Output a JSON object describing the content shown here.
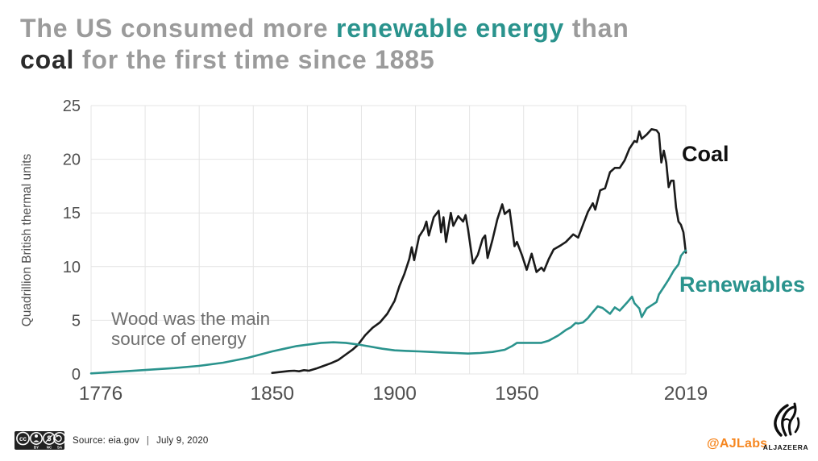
{
  "title": {
    "line1": [
      {
        "text": "The US consumed more ",
        "style": "muted"
      },
      {
        "text": "renewable energy",
        "style": "accent"
      },
      {
        "text": " than",
        "style": "muted"
      }
    ],
    "line2": [
      {
        "text": "coal",
        "style": "dark"
      },
      {
        "text": " for the first time since 1885",
        "style": "muted"
      }
    ]
  },
  "colors": {
    "accent_teal": "#2a938d",
    "coal_black": "#1a1a1a",
    "muted_gray": "#9b9b9b",
    "tick_gray": "#4f4f4f",
    "annotation_gray": "#6f6f6f",
    "grid_gray": "#e4e4e4",
    "credit_orange": "#f6861f"
  },
  "chart_data": {
    "type": "line",
    "title": "The US consumed more renewable energy than coal for the first time since 1885",
    "xlabel": "",
    "ylabel": "Quadrillion British thermal units",
    "xlim": [
      1776,
      2019
    ],
    "ylim": [
      0,
      25
    ],
    "x_ticks": [
      1776,
      1850,
      1900,
      1950,
      2019
    ],
    "y_ticks": [
      0,
      5,
      10,
      15,
      20,
      25
    ],
    "grid": "on",
    "legend_position": "inline-right",
    "annotation": {
      "lines": [
        "Wood was the main",
        "source of energy"
      ]
    },
    "series": [
      {
        "name": "Coal",
        "color": "#1a1a1a",
        "points": [
          [
            1850,
            0.1
          ],
          [
            1854,
            0.2
          ],
          [
            1857,
            0.28
          ],
          [
            1859,
            0.3
          ],
          [
            1861,
            0.25
          ],
          [
            1863,
            0.35
          ],
          [
            1865,
            0.3
          ],
          [
            1868,
            0.5
          ],
          [
            1871,
            0.75
          ],
          [
            1874,
            1.0
          ],
          [
            1877,
            1.3
          ],
          [
            1880,
            1.8
          ],
          [
            1883,
            2.3
          ],
          [
            1885,
            2.7
          ],
          [
            1888,
            3.6
          ],
          [
            1891,
            4.3
          ],
          [
            1894,
            4.8
          ],
          [
            1897,
            5.6
          ],
          [
            1900,
            6.8
          ],
          [
            1902,
            8.2
          ],
          [
            1904,
            9.3
          ],
          [
            1906,
            10.7
          ],
          [
            1907,
            11.8
          ],
          [
            1908,
            10.6
          ],
          [
            1910,
            12.8
          ],
          [
            1912,
            13.5
          ],
          [
            1913,
            14.2
          ],
          [
            1914,
            12.9
          ],
          [
            1916,
            14.6
          ],
          [
            1918,
            15.2
          ],
          [
            1919,
            13.2
          ],
          [
            1920,
            14.6
          ],
          [
            1921,
            12.3
          ],
          [
            1923,
            15.0
          ],
          [
            1924,
            13.8
          ],
          [
            1926,
            14.7
          ],
          [
            1928,
            14.2
          ],
          [
            1929,
            14.8
          ],
          [
            1930,
            13.5
          ],
          [
            1932,
            10.3
          ],
          [
            1934,
            11.1
          ],
          [
            1936,
            12.6
          ],
          [
            1937,
            12.9
          ],
          [
            1938,
            10.8
          ],
          [
            1940,
            12.5
          ],
          [
            1942,
            14.4
          ],
          [
            1944,
            15.8
          ],
          [
            1945,
            14.9
          ],
          [
            1947,
            15.3
          ],
          [
            1949,
            11.9
          ],
          [
            1950,
            12.3
          ],
          [
            1952,
            11.1
          ],
          [
            1954,
            9.7
          ],
          [
            1956,
            11.2
          ],
          [
            1958,
            9.5
          ],
          [
            1960,
            9.9
          ],
          [
            1961,
            9.6
          ],
          [
            1963,
            10.7
          ],
          [
            1965,
            11.6
          ],
          [
            1968,
            12.0
          ],
          [
            1970,
            12.3
          ],
          [
            1973,
            13.0
          ],
          [
            1975,
            12.7
          ],
          [
            1977,
            13.9
          ],
          [
            1979,
            15.1
          ],
          [
            1981,
            15.9
          ],
          [
            1982,
            15.3
          ],
          [
            1984,
            17.1
          ],
          [
            1986,
            17.3
          ],
          [
            1988,
            18.8
          ],
          [
            1990,
            19.2
          ],
          [
            1992,
            19.2
          ],
          [
            1994,
            19.9
          ],
          [
            1996,
            21.0
          ],
          [
            1998,
            21.7
          ],
          [
            1999,
            21.6
          ],
          [
            2000,
            22.6
          ],
          [
            2001,
            21.9
          ],
          [
            2003,
            22.3
          ],
          [
            2005,
            22.8
          ],
          [
            2007,
            22.7
          ],
          [
            2008,
            22.4
          ],
          [
            2009,
            19.7
          ],
          [
            2010,
            20.8
          ],
          [
            2011,
            19.7
          ],
          [
            2012,
            17.4
          ],
          [
            2013,
            18.0
          ],
          [
            2014,
            18.0
          ],
          [
            2015,
            15.5
          ],
          [
            2016,
            14.2
          ],
          [
            2017,
            13.9
          ],
          [
            2018,
            13.2
          ],
          [
            2019,
            11.3
          ]
        ]
      },
      {
        "name": "Renewables",
        "color": "#2a938d",
        "points": [
          [
            1776,
            0.05
          ],
          [
            1790,
            0.25
          ],
          [
            1800,
            0.4
          ],
          [
            1810,
            0.55
          ],
          [
            1820,
            0.75
          ],
          [
            1830,
            1.05
          ],
          [
            1840,
            1.5
          ],
          [
            1845,
            1.8
          ],
          [
            1850,
            2.1
          ],
          [
            1855,
            2.35
          ],
          [
            1860,
            2.6
          ],
          [
            1865,
            2.75
          ],
          [
            1870,
            2.9
          ],
          [
            1875,
            2.95
          ],
          [
            1880,
            2.9
          ],
          [
            1885,
            2.75
          ],
          [
            1890,
            2.55
          ],
          [
            1895,
            2.35
          ],
          [
            1900,
            2.2
          ],
          [
            1905,
            2.15
          ],
          [
            1910,
            2.1
          ],
          [
            1915,
            2.05
          ],
          [
            1920,
            2.0
          ],
          [
            1925,
            1.95
          ],
          [
            1930,
            1.9
          ],
          [
            1935,
            1.95
          ],
          [
            1940,
            2.05
          ],
          [
            1945,
            2.25
          ],
          [
            1948,
            2.6
          ],
          [
            1950,
            2.9
          ],
          [
            1955,
            2.9
          ],
          [
            1960,
            2.9
          ],
          [
            1963,
            3.1
          ],
          [
            1965,
            3.35
          ],
          [
            1967,
            3.6
          ],
          [
            1970,
            4.1
          ],
          [
            1972,
            4.35
          ],
          [
            1974,
            4.75
          ],
          [
            1975,
            4.7
          ],
          [
            1977,
            4.8
          ],
          [
            1979,
            5.2
          ],
          [
            1980,
            5.5
          ],
          [
            1983,
            6.3
          ],
          [
            1985,
            6.15
          ],
          [
            1988,
            5.6
          ],
          [
            1990,
            6.2
          ],
          [
            1992,
            5.9
          ],
          [
            1995,
            6.65
          ],
          [
            1997,
            7.2
          ],
          [
            1998,
            6.6
          ],
          [
            2000,
            6.1
          ],
          [
            2001,
            5.3
          ],
          [
            2003,
            6.1
          ],
          [
            2005,
            6.4
          ],
          [
            2007,
            6.7
          ],
          [
            2008,
            7.4
          ],
          [
            2010,
            8.1
          ],
          [
            2012,
            8.8
          ],
          [
            2014,
            9.6
          ],
          [
            2016,
            10.2
          ],
          [
            2017,
            11.0
          ],
          [
            2018,
            11.3
          ],
          [
            2019,
            11.5
          ]
        ]
      }
    ]
  },
  "footer": {
    "license_icons": [
      "cc",
      "by",
      "nc",
      "sa"
    ],
    "license_sub_labels": [
      "BY",
      "NC",
      "SA"
    ],
    "source_label": "Source: eia.gov",
    "separator": "|",
    "date": "July 9, 2020",
    "credit": "@AJLabs",
    "brand": "ALJAZEERA"
  }
}
